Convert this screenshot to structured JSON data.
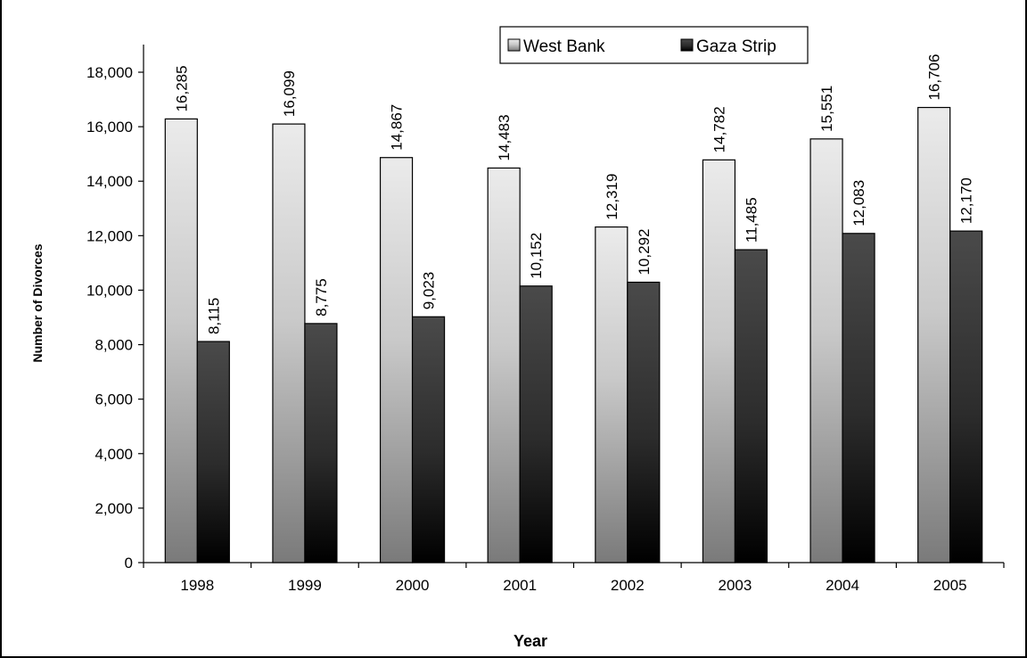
{
  "chart_data": {
    "type": "bar",
    "title": "",
    "xlabel": "Year",
    "ylabel": "Number of Divorces",
    "categories": [
      "1998",
      "1999",
      "2000",
      "2001",
      "2002",
      "2003",
      "2004",
      "2005"
    ],
    "series": [
      {
        "name": "West Bank",
        "values": [
          16285,
          16099,
          14867,
          14483,
          12319,
          14782,
          15551,
          16706
        ],
        "labels": [
          "16,285",
          "16,099",
          "14,867",
          "14,483",
          "12,319",
          "14,782",
          "15,551",
          "16,706"
        ],
        "fill": "gradient-light"
      },
      {
        "name": "Gaza Strip",
        "values": [
          8115,
          8775,
          9023,
          10152,
          10292,
          11485,
          12083,
          12170
        ],
        "labels": [
          "8,115",
          "8,775",
          "9,023",
          "10,152",
          "10,292",
          "11,485",
          "12,083",
          "12,170"
        ],
        "fill": "gradient-dark"
      }
    ],
    "ylim": [
      0,
      18000
    ],
    "yticks": [
      0,
      2000,
      4000,
      6000,
      8000,
      10000,
      12000,
      14000,
      16000,
      18000
    ],
    "ytick_labels": [
      "0",
      "2,000",
      "4,000",
      "6,000",
      "8,000",
      "10,000",
      "12,000",
      "14,000",
      "16,000",
      "18,000"
    ],
    "grid": false,
    "legend_position": "top-right",
    "colors": {
      "west_bank_top": "#ebebeb",
      "west_bank_bottom": "#7a7a7a",
      "gaza_top": "#4a4a4a",
      "gaza_bottom": "#000000"
    }
  }
}
